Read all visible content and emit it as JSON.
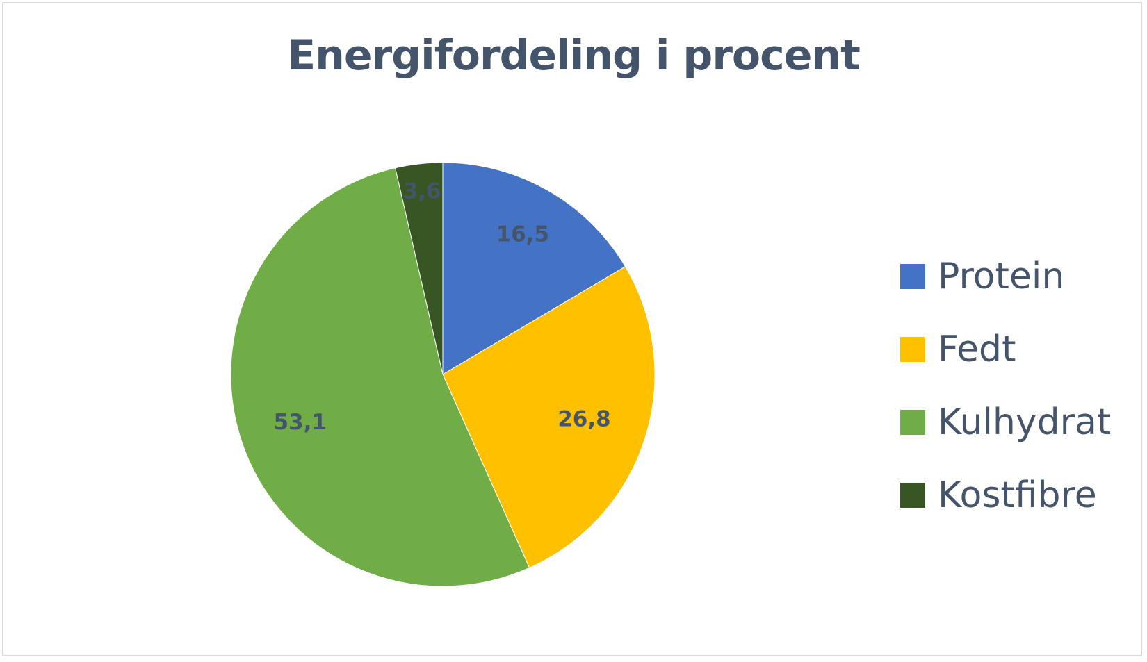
{
  "chart_data": {
    "type": "pie",
    "title": "Energifordeling i procent",
    "categories": [
      "Protein",
      "Fedt",
      "Kulhydrat",
      "Kostfibre"
    ],
    "values": [
      16.5,
      26.8,
      53.1,
      3.6
    ],
    "value_labels": [
      "16,5",
      "26,8",
      "53,1",
      "3,6"
    ],
    "colors": [
      "#4472c4",
      "#ffc000",
      "#70ad47",
      "#375623"
    ],
    "legend": {
      "position": "right",
      "items": [
        {
          "label": "Protein",
          "color": "#4472c4"
        },
        {
          "label": "Fedt",
          "color": "#ffc000"
        },
        {
          "label": "Kulhydrat",
          "color": "#70ad47"
        },
        {
          "label": "Kostfibre",
          "color": "#375623"
        }
      ]
    }
  }
}
